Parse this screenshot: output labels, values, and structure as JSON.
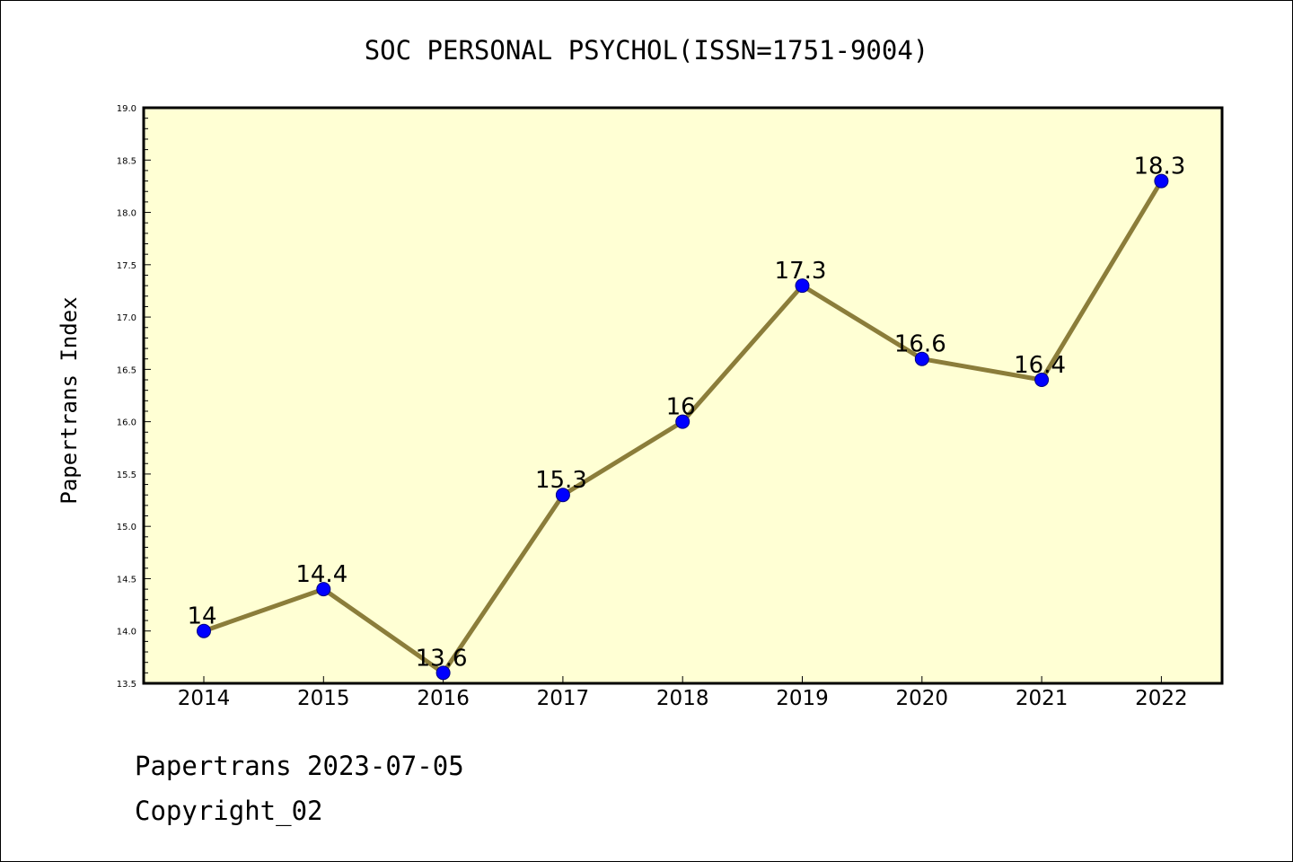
{
  "footer": {
    "line1": "Papertrans 2023-07-05",
    "line2": "Copyright_02"
  },
  "chart_data": {
    "type": "line",
    "title": "SOC PERSONAL PSYCHOL(ISSN=1751-9004)",
    "xlabel": "",
    "ylabel": "Papertrans Index",
    "categories": [
      "2014",
      "2015",
      "2016",
      "2017",
      "2018",
      "2019",
      "2020",
      "2021",
      "2022"
    ],
    "series": [
      {
        "values": [
          14,
          14.4,
          13.6,
          15.3,
          16,
          17.3,
          16.6,
          16.4,
          18.3
        ],
        "data_labels": [
          "14",
          "14.4",
          "13.6",
          "15.3",
          "16",
          "17.3",
          "16.6",
          "16.4",
          "18.3"
        ]
      }
    ],
    "ylim": [
      13.5,
      19.0
    ],
    "yticks": [
      "13.5",
      "14.0",
      "14.5",
      "15.0",
      "15.5",
      "16.0",
      "16.5",
      "17.0",
      "17.5",
      "18.0",
      "18.5",
      "19.0"
    ],
    "grid": false,
    "legend": "none",
    "colors": {
      "plot_background": "#ffffd4",
      "line": "#8b7d3a",
      "marker": "#0000ff",
      "marker_edge": "#000080"
    }
  }
}
